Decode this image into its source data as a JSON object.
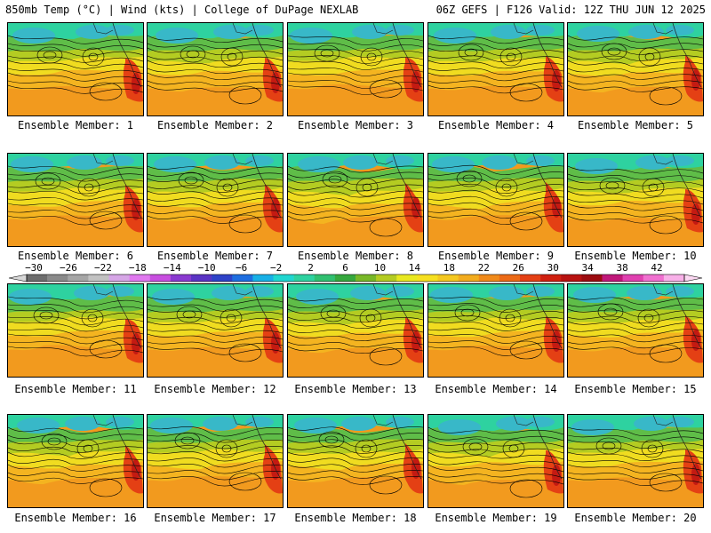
{
  "header": {
    "left": "850mb Temp (°C) | Wind (kts) | College of DuPage NEXLAB",
    "right": "06Z GEFS | F126 Valid: 12Z THU JUN 12 2025"
  },
  "colorbar": {
    "labels": [
      "−30",
      "−26",
      "−22",
      "−18",
      "−14",
      "−10",
      "−6",
      "−2",
      "2",
      "6",
      "10",
      "14",
      "18",
      "22",
      "26",
      "30",
      "34",
      "38",
      "42"
    ],
    "colors": [
      "#6e6e6e",
      "#8a8a8a",
      "#a6a6a6",
      "#c2c2c2",
      "#d6a6e6",
      "#e078ef",
      "#c84ee0",
      "#8a3ad0",
      "#5a34c4",
      "#2e43c8",
      "#1e6ee0",
      "#18b0e6",
      "#20d6d0",
      "#2ed2a0",
      "#30c070",
      "#36a83e",
      "#78b828",
      "#b4cc22",
      "#e8e820",
      "#f6e020",
      "#f4c820",
      "#f2ac1e",
      "#f08a1a",
      "#ec6a16",
      "#e44014",
      "#d02010",
      "#b81210",
      "#9c0c10",
      "#c0187a",
      "#e040b0",
      "#f070d0",
      "#f8b0e8"
    ]
  },
  "map": {
    "colors": {
      "cold": "#38b8c8",
      "cool": "#2ed2a0",
      "mild": "#5fbd48",
      "lime": "#b4cc22",
      "yellow": "#f0dc20",
      "warm": "#f4b420",
      "orange": "#f29a1e",
      "hot": "#e44014",
      "deep_hot": "#c41a12",
      "contour": "#000000"
    }
  },
  "members": [
    {
      "label": "Ensemble Member: 1"
    },
    {
      "label": "Ensemble Member: 2"
    },
    {
      "label": "Ensemble Member: 3"
    },
    {
      "label": "Ensemble Member: 4"
    },
    {
      "label": "Ensemble Member: 5"
    },
    {
      "label": "Ensemble Member: 6"
    },
    {
      "label": "Ensemble Member: 7"
    },
    {
      "label": "Ensemble Member: 8"
    },
    {
      "label": "Ensemble Member: 9"
    },
    {
      "label": "Ensemble Member: 10"
    },
    {
      "label": "Ensemble Member: 11"
    },
    {
      "label": "Ensemble Member: 12"
    },
    {
      "label": "Ensemble Member: 13"
    },
    {
      "label": "Ensemble Member: 14"
    },
    {
      "label": "Ensemble Member: 15"
    },
    {
      "label": "Ensemble Member: 16"
    },
    {
      "label": "Ensemble Member: 17"
    },
    {
      "label": "Ensemble Member: 18"
    },
    {
      "label": "Ensemble Member: 19"
    },
    {
      "label": "Ensemble Member: 20"
    }
  ]
}
